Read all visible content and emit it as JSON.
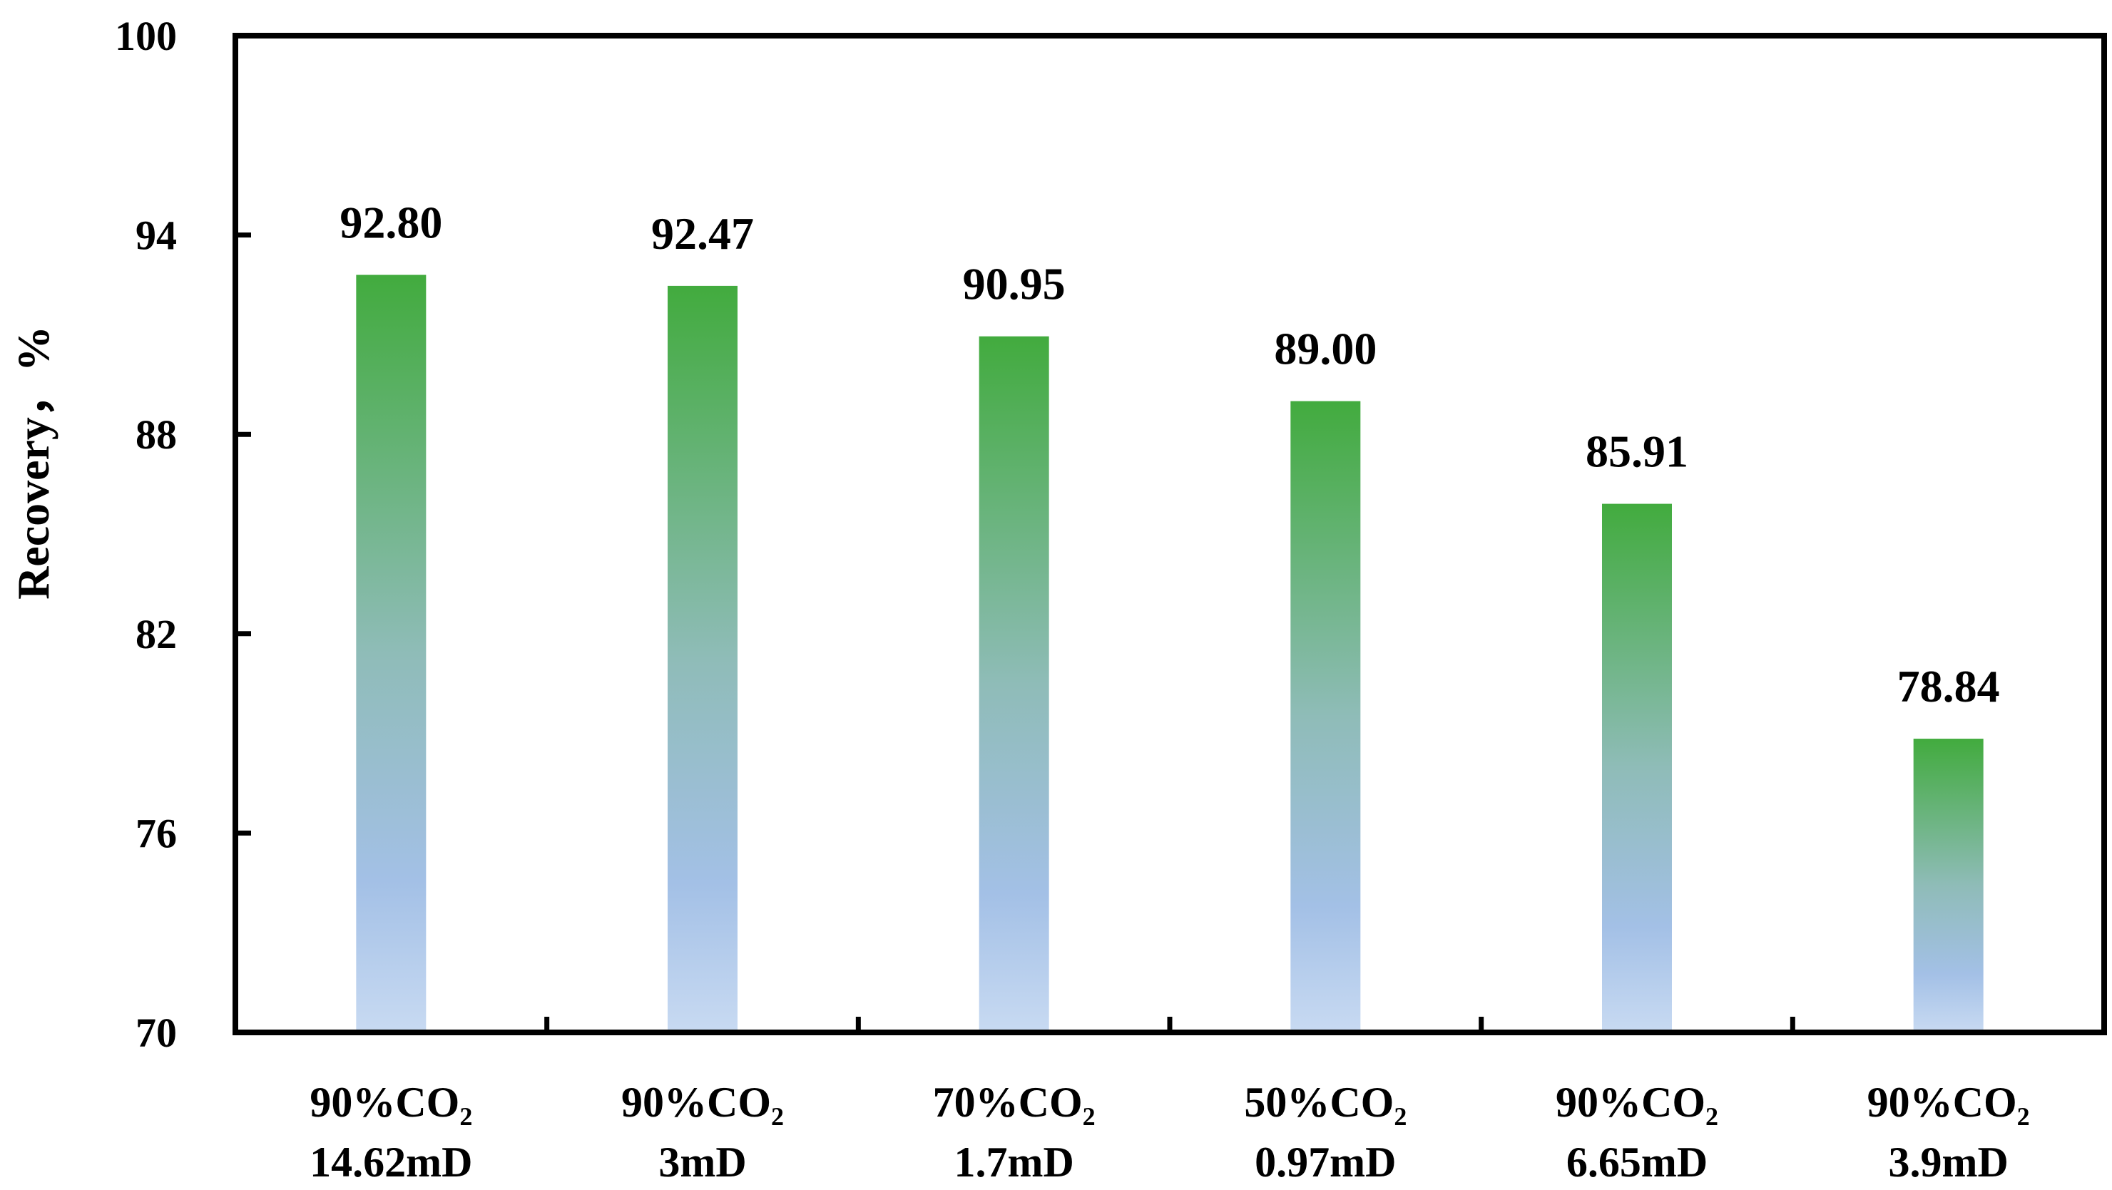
{
  "chart_data": {
    "type": "bar",
    "title": "",
    "xlabel": "",
    "ylabel": "Recovery，%",
    "ylim": [
      70,
      100
    ],
    "yticks": [
      70,
      76,
      82,
      88,
      94,
      100
    ],
    "grid": false,
    "categories": [
      {
        "line1": "90%CO₂",
        "line2": "14.62mD"
      },
      {
        "line1": "90%CO₂",
        "line2": "3mD"
      },
      {
        "line1": "70%CO₂",
        "line2": "1.7mD"
      },
      {
        "line1": "50%CO₂",
        "line2": "0.97mD"
      },
      {
        "line1": "90%CO₂",
        "line2": "6.65mD"
      },
      {
        "line1": "90%CO₂",
        "line2": "3.9mD"
      }
    ],
    "values": [
      92.8,
      92.47,
      90.95,
      89.0,
      85.91,
      78.84
    ],
    "value_labels": [
      "92.80",
      "92.47",
      "90.95",
      "89.00",
      "85.91",
      "78.84"
    ],
    "colors": {
      "bar_top": "#42ab3e",
      "bar_mid": "#8fbcb8",
      "bar_lower": "#a3c0e6",
      "bar_bottom": "#c8daf2",
      "axis": "#000000"
    }
  }
}
